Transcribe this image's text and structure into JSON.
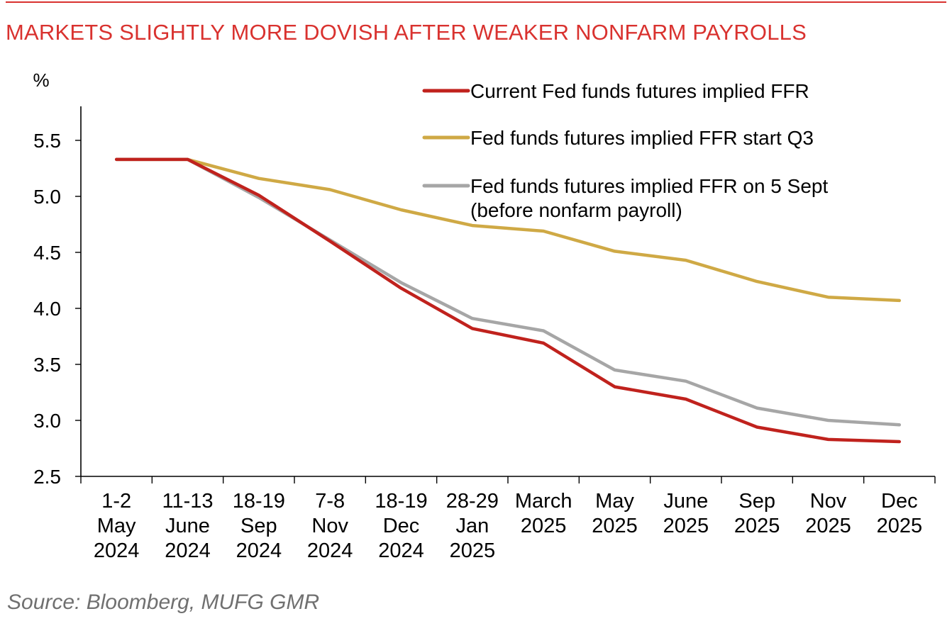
{
  "title": "MARKETS SLIGHTLY MORE DOVISH AFTER WEAKER NONFARM PAYROLLS",
  "source": "Source: Bloomberg, MUFG GMR",
  "chart_data": {
    "type": "line",
    "ylabel": "%",
    "xlabel": "",
    "ylim": [
      2.5,
      5.8
    ],
    "yticks": [
      "5.5",
      "5.0",
      "4.5",
      "4.0",
      "3.5",
      "3.0",
      "2.5"
    ],
    "ytick_values": [
      5.5,
      5.0,
      4.5,
      4.0,
      3.5,
      3.0,
      2.5
    ],
    "categories": [
      [
        "1-2",
        "May",
        "2024"
      ],
      [
        "11-13",
        "June",
        "2024"
      ],
      [
        "18-19",
        "Sep",
        "2024"
      ],
      [
        "7-8",
        "Nov",
        "2024"
      ],
      [
        "18-19",
        "Dec",
        "2024"
      ],
      [
        "28-29",
        "Jan",
        "2025"
      ],
      [
        "March",
        "2025"
      ],
      [
        "May",
        "2025"
      ],
      [
        "June",
        "2025"
      ],
      [
        "Sep",
        "2025"
      ],
      [
        "Nov",
        "2025"
      ],
      [
        "Dec",
        "2025"
      ]
    ],
    "series": [
      {
        "name": "Current Fed funds futures implied FFR",
        "color": "#c0221d",
        "values": [
          5.33,
          5.33,
          5.01,
          4.6,
          4.18,
          3.82,
          3.69,
          3.3,
          3.19,
          2.94,
          2.83,
          2.81
        ]
      },
      {
        "name": "Fed funds futures implied FFR start Q3",
        "color": "#cfa945",
        "values": [
          5.33,
          5.33,
          5.16,
          5.06,
          4.88,
          4.74,
          4.69,
          4.51,
          4.43,
          4.24,
          4.1,
          4.07
        ]
      },
      {
        "name": "Fed funds futures implied FFR on 5 Sept (before nonfarm payroll)",
        "legend_lines": [
          "Fed funds futures implied FFR on 5 Sept",
          "(before nonfarm payroll)"
        ],
        "color": "#a6a6a6",
        "values": [
          5.33,
          5.33,
          4.99,
          4.61,
          4.23,
          3.91,
          3.8,
          3.45,
          3.35,
          3.11,
          3.0,
          2.96
        ]
      }
    ],
    "grid": false,
    "legend_position": "top-right"
  }
}
